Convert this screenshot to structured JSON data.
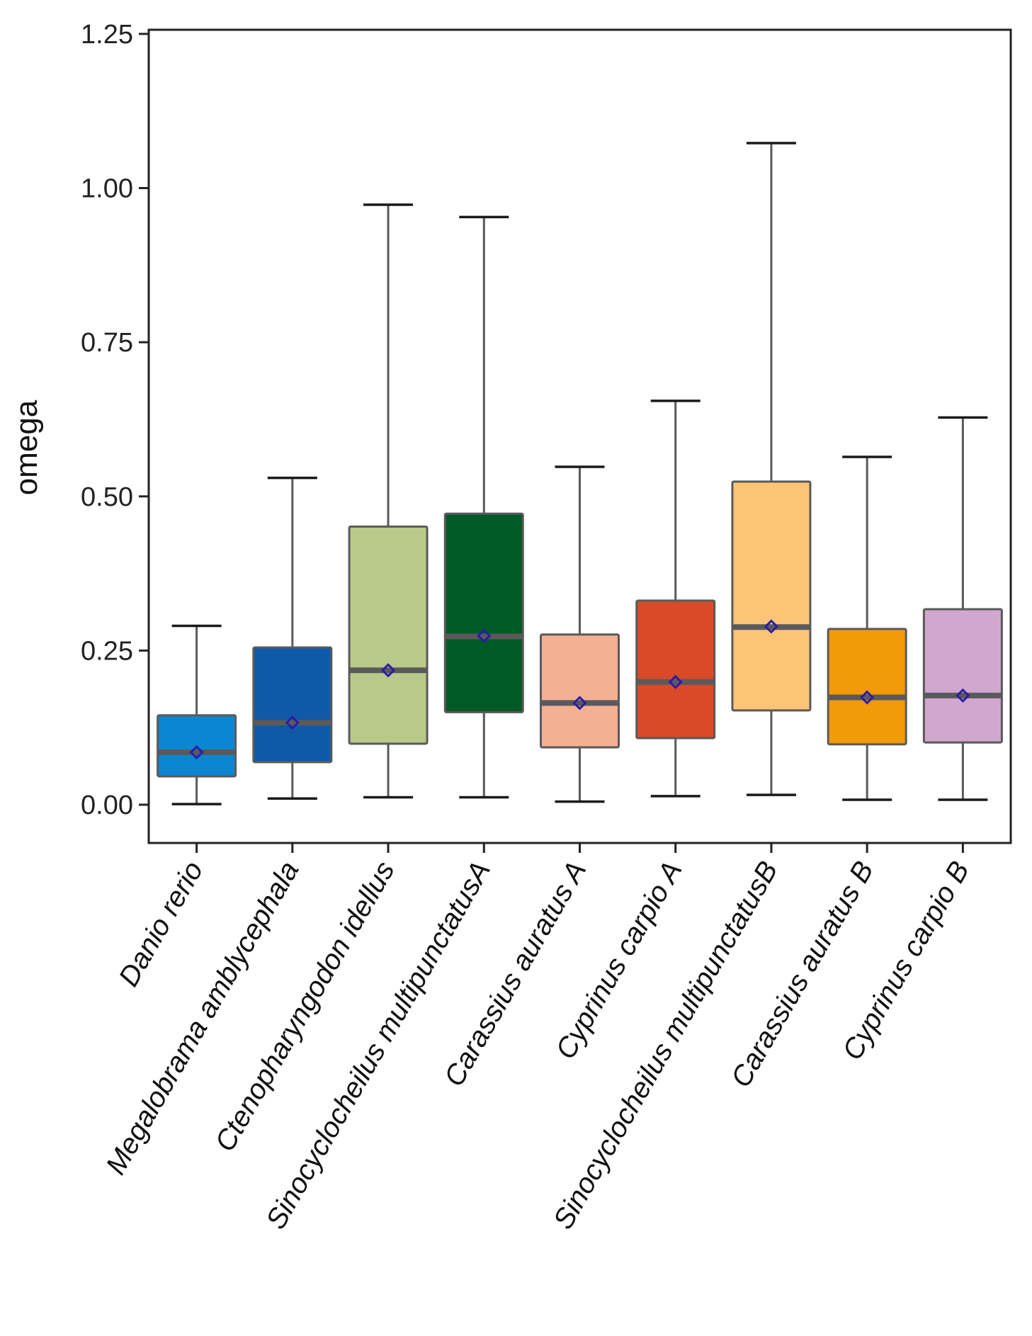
{
  "chart_data": {
    "type": "boxplot",
    "title": "",
    "xlabel": "",
    "ylabel": "omega",
    "ylim": [
      -0.06,
      1.255
    ],
    "yticks": [
      0.0,
      0.25,
      0.5,
      0.75,
      1.0,
      1.25
    ],
    "ytick_labels": [
      "0.00",
      "0.25",
      "0.50",
      "0.75",
      "1.00",
      "1.25"
    ],
    "grid": false,
    "legend": "none",
    "categories": [
      "Danio rerio",
      "Megalobrama amblycephala",
      "Ctenopharyngodon idellus",
      "Sinocyclocheilus multipunctatusA",
      "Carassius auratus A",
      "Cyprinus carpio A",
      "Sinocyclocheilus multipunctatusB",
      "Carassius auratus B",
      "Cyprinus carpio B"
    ],
    "boxes": [
      {
        "name": "Danio rerio",
        "whisker_low": 0.001,
        "q1": 0.046,
        "median": 0.085,
        "q3": 0.145,
        "whisker_high": 0.29,
        "mean": 0.085,
        "color": "#0b87d1"
      },
      {
        "name": "Megalobrama amblycephala",
        "whisker_low": 0.01,
        "q1": 0.069,
        "median": 0.133,
        "q3": 0.255,
        "whisker_high": 0.53,
        "mean": 0.133,
        "color": "#0f5aa8"
      },
      {
        "name": "Ctenopharyngodon idellus",
        "whisker_low": 0.012,
        "q1": 0.099,
        "median": 0.218,
        "q3": 0.451,
        "whisker_high": 0.973,
        "mean": 0.218,
        "color": "#b9c98a"
      },
      {
        "name": "Sinocyclocheilus multipunctatusA",
        "whisker_low": 0.012,
        "q1": 0.15,
        "median": 0.273,
        "q3": 0.472,
        "whisker_high": 0.953,
        "mean": 0.274,
        "color": "#005a25"
      },
      {
        "name": "Carassius auratus A",
        "whisker_low": 0.005,
        "q1": 0.093,
        "median": 0.165,
        "q3": 0.276,
        "whisker_high": 0.548,
        "mean": 0.165,
        "color": "#f4b092"
      },
      {
        "name": "Cyprinus carpio A",
        "whisker_low": 0.014,
        "q1": 0.108,
        "median": 0.199,
        "q3": 0.331,
        "whisker_high": 0.655,
        "mean": 0.199,
        "color": "#da4a28"
      },
      {
        "name": "Sinocyclocheilus multipunctatusB",
        "whisker_low": 0.016,
        "q1": 0.153,
        "median": 0.288,
        "q3": 0.524,
        "whisker_high": 1.073,
        "mean": 0.289,
        "color": "#fbc477"
      },
      {
        "name": "Carassius auratus B",
        "whisker_low": 0.008,
        "q1": 0.098,
        "median": 0.174,
        "q3": 0.285,
        "whisker_high": 0.564,
        "mean": 0.174,
        "color": "#f39a0b"
      },
      {
        "name": "Cyprinus carpio B",
        "whisker_low": 0.008,
        "q1": 0.101,
        "median": 0.177,
        "q3": 0.317,
        "whisker_high": 0.628,
        "mean": 0.177,
        "color": "#d1a7cf"
      }
    ],
    "styles": {
      "box_stroke": "#5a5a5a",
      "median_stroke": "#5a5a5a",
      "mean_marker_stroke": "#2a1ca8",
      "axis_color": "#222222"
    }
  }
}
